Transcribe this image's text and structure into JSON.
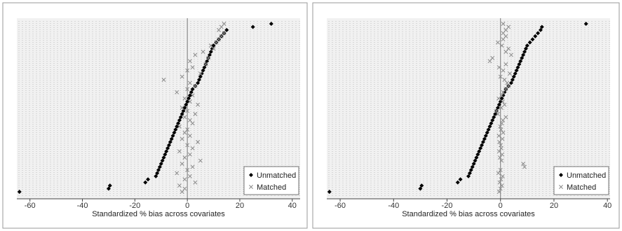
{
  "chart_data": [
    {
      "type": "scatter",
      "title": "",
      "xlabel": "Standardized % bias across covariates",
      "ylabel": "",
      "xlim": [
        -65,
        43
      ],
      "xticks": [
        -60,
        -40,
        -20,
        0,
        20,
        40
      ],
      "tick_labels": [
        "-60",
        "-40",
        "-20",
        "0",
        "20",
        "40"
      ],
      "grid": true,
      "legend_position": "bottom-right",
      "series": [
        {
          "name": "Unmatched",
          "marker": "diamond",
          "color": "#000000",
          "values": [
            -64,
            -30,
            -29.5,
            -16,
            -15,
            -12,
            -11.5,
            -11,
            -10.5,
            -10,
            -9.5,
            -9,
            -8.5,
            -8,
            -7.5,
            -7,
            -6.5,
            -6,
            -5.5,
            -5,
            -4.5,
            -4,
            -3.5,
            -3,
            -2.5,
            -2,
            -1.5,
            -1,
            -0.5,
            0,
            0.5,
            1,
            1.5,
            2,
            3,
            4,
            4.5,
            5,
            5.5,
            6,
            6.5,
            7,
            7.5,
            8,
            8.5,
            9,
            9.5,
            10,
            11,
            12,
            13,
            14,
            15,
            25,
            32
          ]
        },
        {
          "name": "Matched",
          "marker": "x",
          "color": "#8a8a8a",
          "values": [
            -2,
            -1,
            -3,
            3,
            -1,
            1,
            -4,
            0,
            2,
            -2,
            5,
            -1,
            1,
            -3,
            2,
            0,
            4,
            -2,
            1,
            -1,
            0,
            -3,
            2,
            1,
            -1,
            3,
            0,
            -2,
            4,
            1,
            -1,
            2,
            -4,
            0,
            3,
            1,
            -9,
            -2,
            5,
            0,
            2,
            7,
            1,
            8,
            3,
            6,
            10,
            9,
            11,
            12,
            13,
            14,
            12,
            13,
            14
          ]
        }
      ]
    },
    {
      "type": "scatter",
      "title": "",
      "xlabel": "Standardized % bias across covariates",
      "ylabel": "",
      "xlim": [
        -65,
        41
      ],
      "xticks": [
        -60,
        -40,
        -20,
        0,
        20,
        40
      ],
      "tick_labels": [
        "-60",
        "-40",
        "-20",
        "0",
        "20",
        "40"
      ],
      "grid": true,
      "legend_position": "bottom-right",
      "series": [
        {
          "name": "Unmatched",
          "marker": "diamond",
          "color": "#000000",
          "values": [
            -64,
            -30,
            -29.5,
            -16,
            -15,
            -12,
            -11.5,
            -11,
            -10.5,
            -10,
            -9.5,
            -9,
            -8.5,
            -8,
            -7.5,
            -7,
            -6.5,
            -6,
            -5.5,
            -5,
            -4.5,
            -4,
            -3.5,
            -3,
            -2.5,
            -2,
            -1.5,
            -1,
            -0.5,
            0,
            0.5,
            1,
            1.5,
            2,
            3,
            4,
            4.5,
            5,
            5.5,
            6,
            6.5,
            7,
            7.5,
            8,
            8.5,
            9,
            9.5,
            10,
            11,
            12,
            13,
            14,
            15,
            15.5,
            32
          ]
        },
        {
          "name": "Matched",
          "marker": "x",
          "color": "#8a8a8a",
          "values": [
            -0.5,
            0,
            0.5,
            -0.3,
            0.2,
            0.8,
            -0.8,
            0,
            9,
            8.5,
            0.4,
            -0.2,
            0.6,
            -0.5,
            0.3,
            0.1,
            -0.4,
            0.7,
            -0.6,
            1,
            0.2,
            -0.1,
            0.5,
            0.9,
            2,
            -1,
            -1.5,
            0.3,
            1.5,
            0.8,
            -0.7,
            0.4,
            1,
            2,
            3,
            2.5,
            1.5,
            0,
            3.5,
            1,
            -0.5,
            2,
            -4,
            -3,
            4,
            2,
            3,
            0.5,
            -1,
            1,
            2,
            1,
            2,
            3,
            1
          ]
        }
      ]
    }
  ]
}
